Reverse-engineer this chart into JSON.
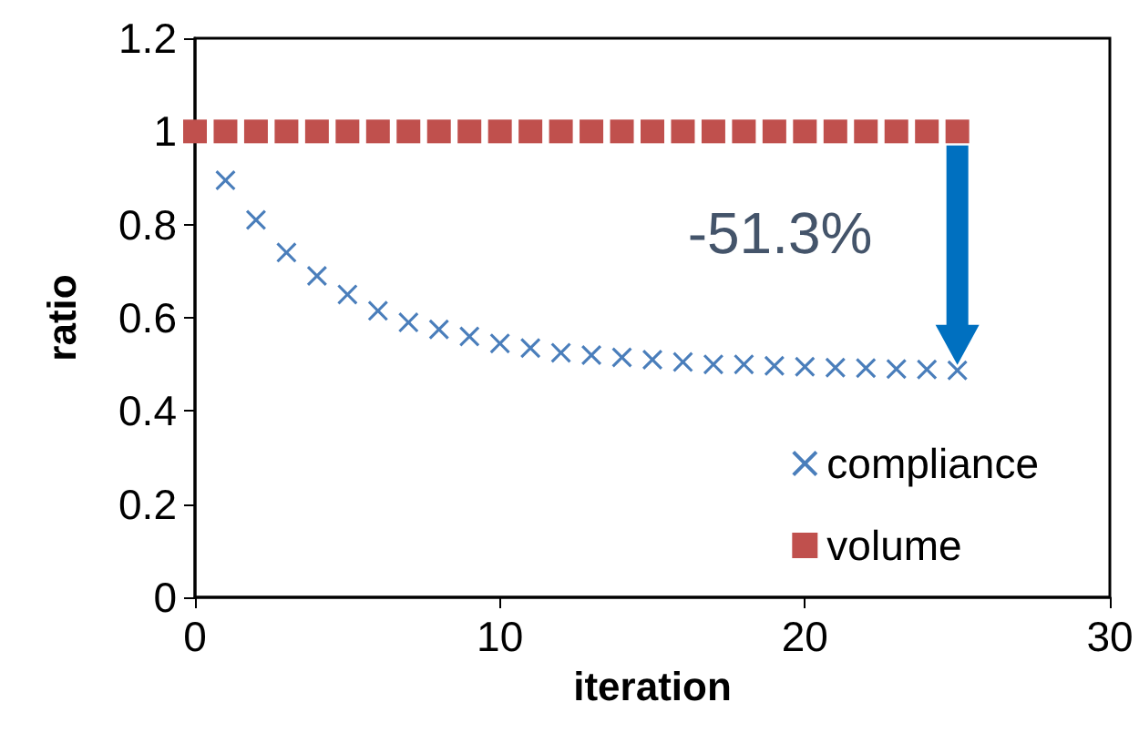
{
  "chart_data": {
    "type": "scatter",
    "xlabel": "iteration",
    "ylabel": "ratio",
    "xlim": [
      0,
      30
    ],
    "xticks": [
      0,
      10,
      20,
      30
    ],
    "ylim": [
      0,
      1.2
    ],
    "yticks": [
      0,
      0.2,
      0.4,
      0.6,
      0.8,
      1,
      1.2
    ],
    "grid": false,
    "legend": "bottom right",
    "annotations": [
      "-51.3%"
    ],
    "series": [
      {
        "name": "compliance",
        "color": "#4a7ebb",
        "marker": "cross",
        "x": [
          1,
          2,
          3,
          4,
          5,
          6,
          7,
          8,
          9,
          10,
          11,
          12,
          13,
          14,
          15,
          16,
          17,
          18,
          19,
          20,
          21,
          22,
          23,
          24,
          25
        ],
        "values": [
          0.895,
          0.81,
          0.74,
          0.69,
          0.65,
          0.615,
          0.59,
          0.575,
          0.56,
          0.545,
          0.535,
          0.525,
          0.52,
          0.515,
          0.51,
          0.505,
          0.5,
          0.5,
          0.497,
          0.495,
          0.493,
          0.492,
          0.49,
          0.489,
          0.487
        ]
      },
      {
        "name": "volume",
        "color": "#c0504d",
        "marker": "square",
        "x": [
          0,
          1,
          2,
          3,
          4,
          5,
          6,
          7,
          8,
          9,
          10,
          11,
          12,
          13,
          14,
          15,
          16,
          17,
          18,
          19,
          20,
          21,
          22,
          23,
          24,
          25
        ],
        "values": [
          1,
          1,
          1,
          1,
          1,
          1,
          1,
          1,
          1,
          1,
          1,
          1,
          1,
          1,
          1,
          1,
          1,
          1,
          1,
          1,
          1,
          1,
          1,
          1,
          1,
          1
        ]
      }
    ]
  }
}
